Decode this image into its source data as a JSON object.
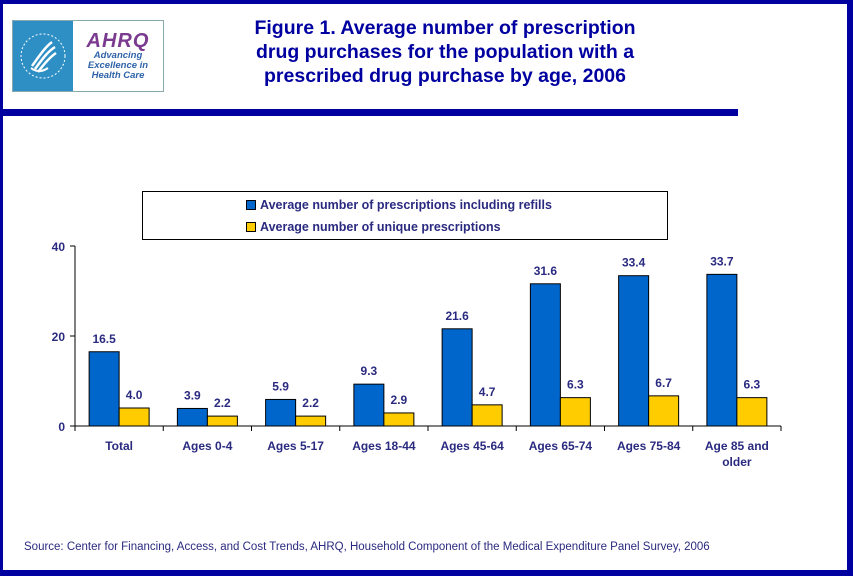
{
  "header": {
    "logo_hhs_alt": "Department of Health & Human Services USA",
    "logo_ahrq_word": "AHRQ",
    "logo_ahrq_tagline": [
      "Advancing",
      "Excellence in",
      "Health Care"
    ],
    "title_lines": [
      "Figure 1. Average number of prescription",
      "drug purchases for the population with a",
      "prescribed drug purchase by age, 2006"
    ]
  },
  "colors": {
    "border": "#0000A0",
    "series_refills": "#0066CC",
    "series_unique": "#FFCC00",
    "text": "#2a2a80"
  },
  "chart_data": {
    "type": "bar",
    "title": "Figure 1. Average number of prescription drug purchases for the population with a prescribed drug purchase by age, 2006",
    "categories": [
      "Total",
      "Ages 0-4",
      "Ages 5-17",
      "Ages 18-44",
      "Ages 45-64",
      "Ages 65-74",
      "Ages 75-84",
      "Age 85 and older"
    ],
    "category_label_lines": [
      [
        "Total"
      ],
      [
        "Ages 0-4"
      ],
      [
        "Ages 5-17"
      ],
      [
        "Ages 18-44"
      ],
      [
        "Ages 45-64"
      ],
      [
        "Ages 65-74"
      ],
      [
        "Ages 75-84"
      ],
      [
        "Age 85 and",
        "older"
      ]
    ],
    "series": [
      {
        "name": "Average number of prescriptions including refills",
        "color": "#0066CC",
        "values": [
          16.5,
          3.9,
          5.9,
          9.3,
          21.6,
          31.6,
          33.4,
          33.7
        ],
        "labels": [
          "16.5",
          "3.9",
          "5.9",
          "9.3",
          "21.6",
          "31.6",
          "33.4",
          "33.7"
        ]
      },
      {
        "name": "Average number of unique prescriptions",
        "color": "#FFCC00",
        "values": [
          4.0,
          2.2,
          2.2,
          2.9,
          4.7,
          6.3,
          6.7,
          6.3
        ],
        "labels": [
          "4.0",
          "2.2",
          "2.2",
          "2.9",
          "4.7",
          "6.3",
          "6.7",
          "6.3"
        ]
      }
    ],
    "xlabel": "",
    "ylabel": "",
    "ylim": [
      0,
      40
    ],
    "yticks": [
      0,
      20,
      40
    ],
    "grid": false,
    "legend_position": "top"
  },
  "legend": {
    "items": [
      "Average number of prescriptions including refills",
      "Average number of unique prescriptions"
    ]
  },
  "footer": {
    "source": "Source: Center for Financing, Access, and Cost Trends, AHRQ, Household Component of the Medical Expenditure Panel Survey, 2006"
  }
}
